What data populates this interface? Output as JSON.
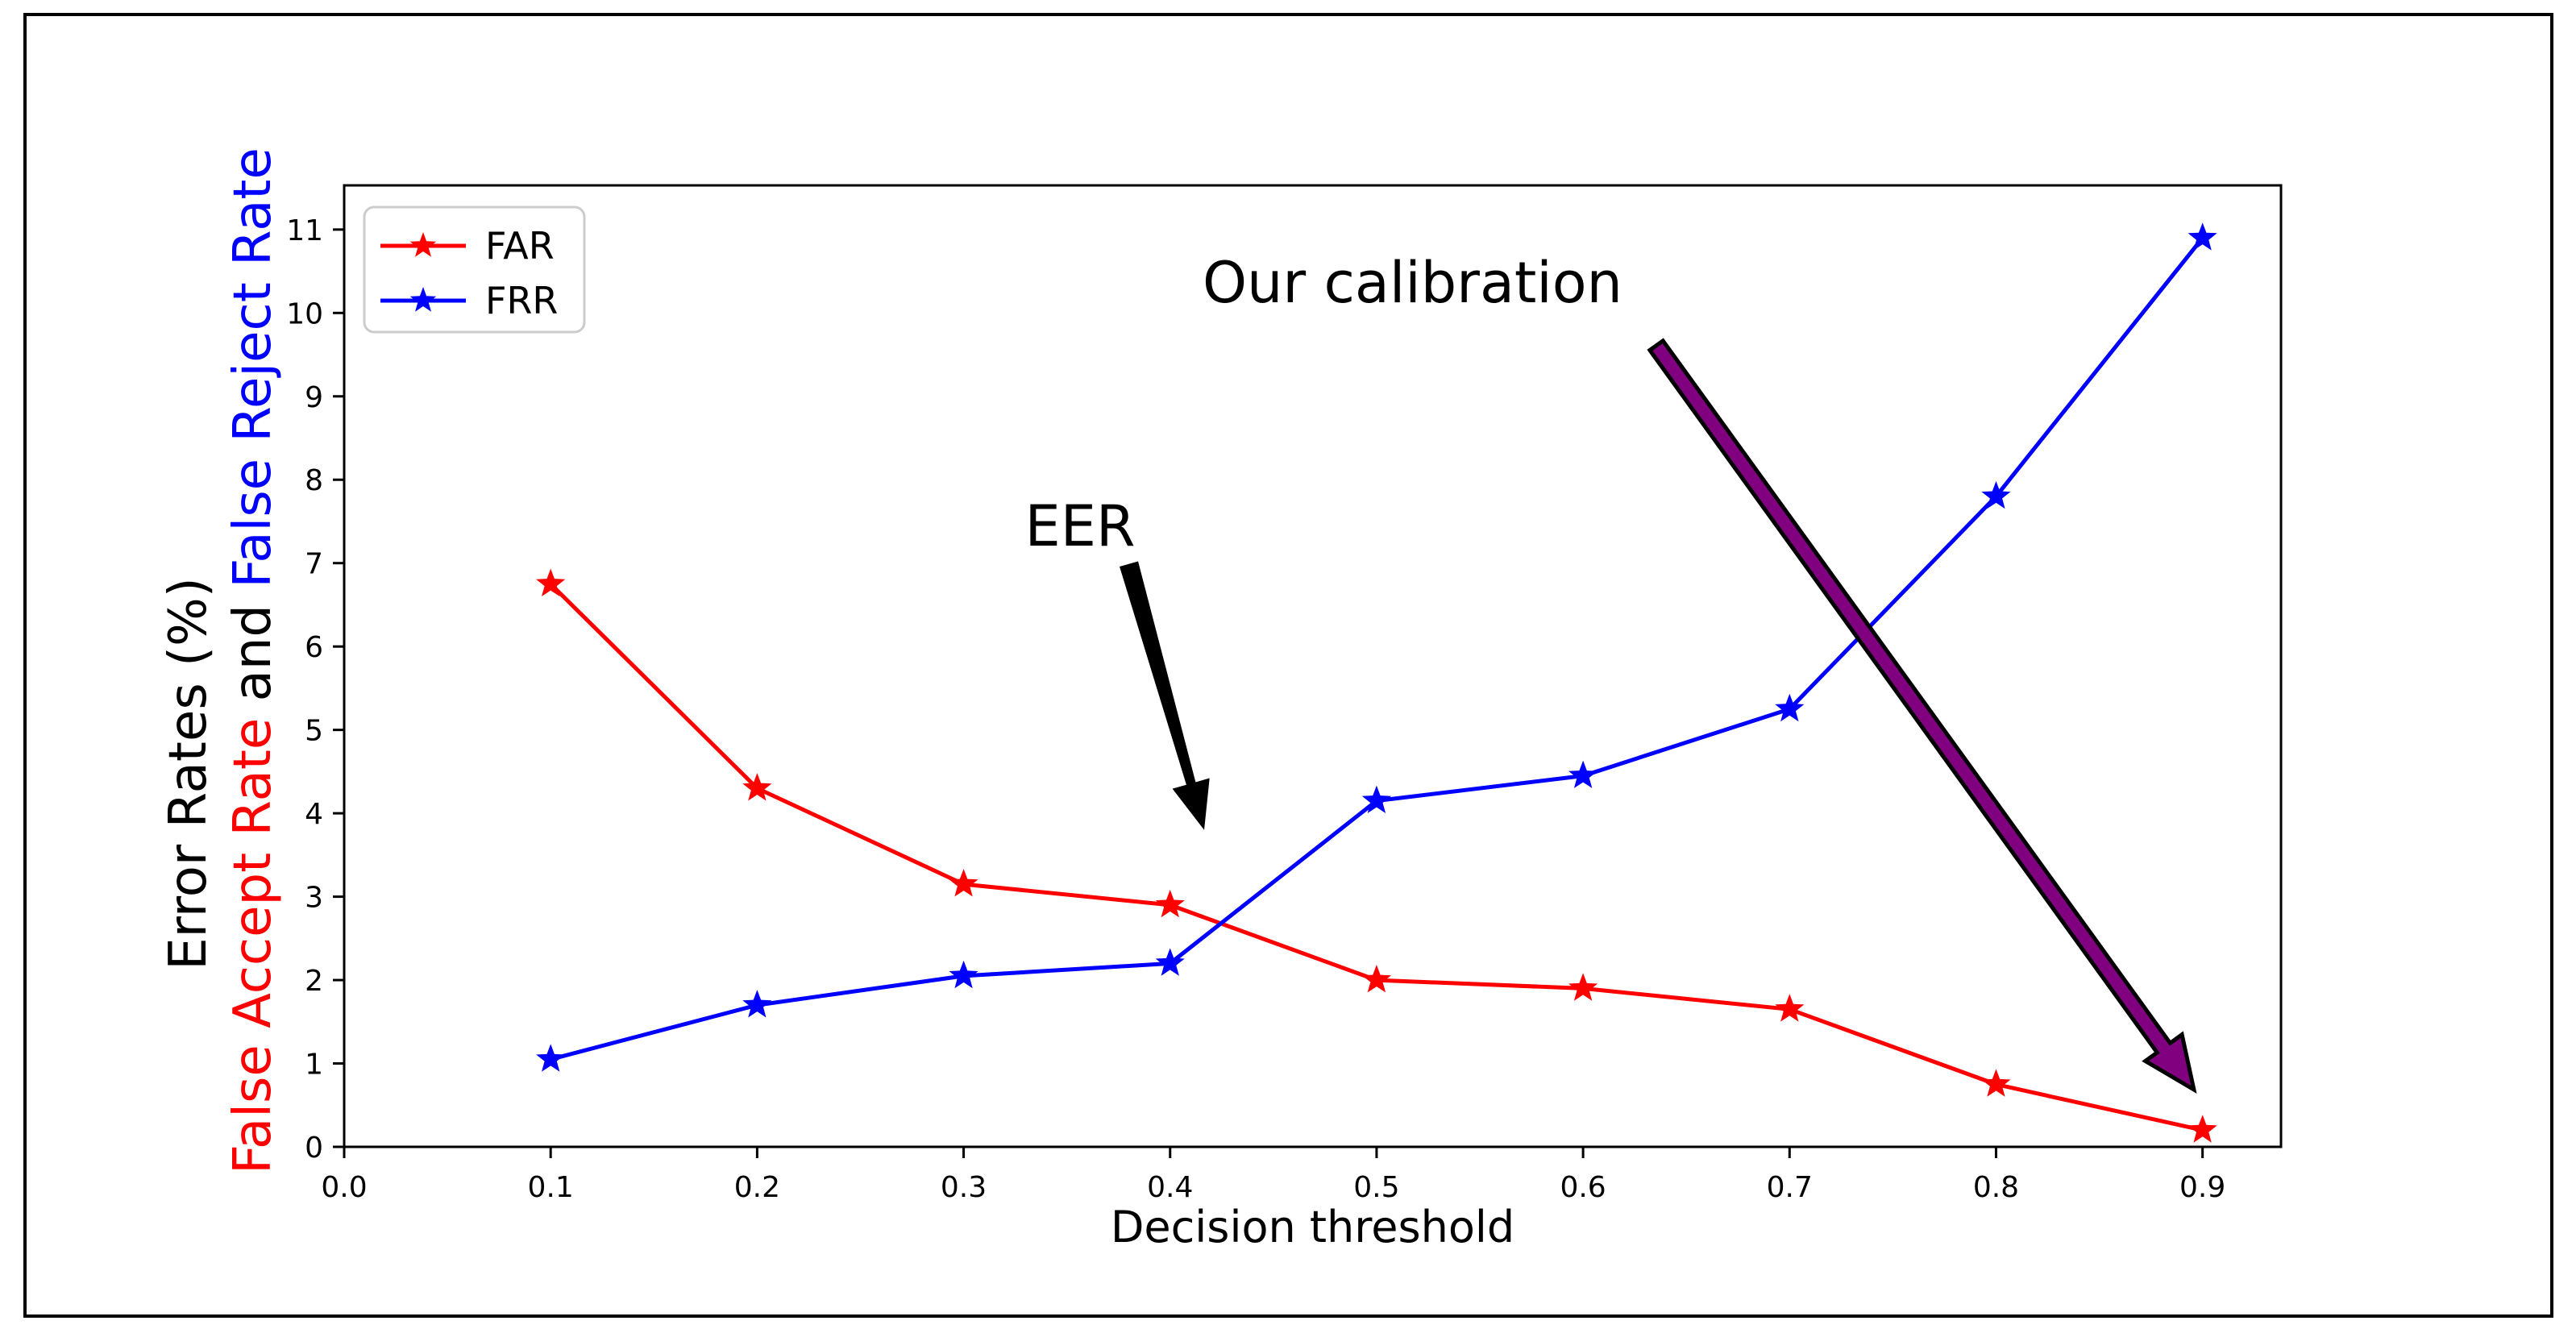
{
  "figure": {
    "background": "#ffffff",
    "frame_color": "#000000"
  },
  "chart_data": {
    "type": "line",
    "title": "",
    "xlabel": "Decision threshold",
    "ylabel_parts": [
      {
        "text": "Error Rates (%)",
        "color": "#000000"
      },
      {
        "text": "False Accept Rate",
        "color": "#ff0000"
      },
      {
        "text": " and ",
        "color": "#000000"
      },
      {
        "text": "False Reject Rate",
        "color": "#0000ff"
      }
    ],
    "x": [
      0.1,
      0.2,
      0.3,
      0.4,
      0.5,
      0.6,
      0.7,
      0.8,
      0.9
    ],
    "series": [
      {
        "name": "FAR",
        "color": "#ff0000",
        "marker": "star",
        "values": [
          6.75,
          4.3,
          3.15,
          2.9,
          2.0,
          1.9,
          1.65,
          0.75,
          0.2
        ]
      },
      {
        "name": "FRR",
        "color": "#0000ff",
        "marker": "star",
        "values": [
          1.05,
          1.7,
          2.05,
          2.2,
          4.15,
          4.45,
          5.25,
          7.8,
          10.9
        ]
      }
    ],
    "xlim": [
      0.0,
      0.938
    ],
    "ylim": [
      0.0,
      11.53
    ],
    "xticks": [
      "0.0",
      "0.1",
      "0.2",
      "0.3",
      "0.4",
      "0.5",
      "0.6",
      "0.7",
      "0.8",
      "0.9"
    ],
    "yticks": [
      "0",
      "1",
      "2",
      "3",
      "4",
      "5",
      "6",
      "7",
      "8",
      "9",
      "10",
      "11"
    ],
    "grid": false,
    "legend": {
      "position": "upper left",
      "entries": [
        "FAR",
        "FRR"
      ]
    },
    "annotations": [
      {
        "id": "eer",
        "text": "EER",
        "color": "#000000",
        "anchor": "middle",
        "text_x": 0.3564,
        "text_y": 7.21,
        "arrow": {
          "from_x": 0.38,
          "from_y": 6.99,
          "to_x": 0.4165,
          "to_y": 3.8,
          "fill": "#000000",
          "edge": "none",
          "style": "tapered"
        }
      },
      {
        "id": "our-calibration",
        "text": "Our calibration",
        "color": "#000000",
        "anchor": "start",
        "text_x": 0.4157,
        "text_y": 10.13,
        "arrow": {
          "from_x": 0.6355,
          "from_y": 9.61,
          "to_x": 0.8958,
          "to_y": 0.686,
          "fill": "#800080",
          "edge": "#000000",
          "style": "thick-outlined"
        }
      }
    ]
  }
}
